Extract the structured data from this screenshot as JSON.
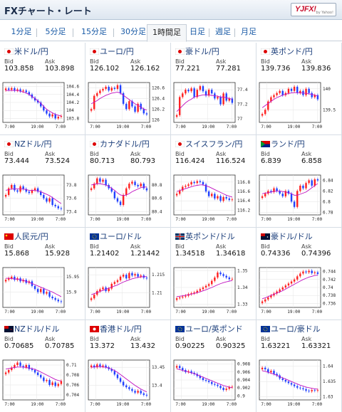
{
  "header": {
    "title": "FXチャート・レート",
    "logo_text": "YJFX!",
    "logo_sub": "by Yahoo!"
  },
  "tabs": [
    "1分足",
    "5分足",
    "15分足",
    "30分足",
    "1時間足",
    "日足",
    "週足",
    "月足"
  ],
  "active_tab": "1時間足",
  "labels": {
    "bid": "Bid",
    "ask": "Ask"
  },
  "colors": {
    "up": "#ff2020",
    "down": "#2040ff",
    "ma": "#c010c0",
    "link": "#1a3d7a"
  },
  "pairs": [
    {
      "name": "米ドル/円",
      "flag": "jp",
      "bid": "103.858",
      "ask": "103.898",
      "chart_data": {
        "type": "candlestick",
        "yticks": [
          "104.6",
          "104.4",
          "104.2",
          "104",
          "103.8"
        ],
        "ylim": [
          103.7,
          104.7
        ],
        "xticks": [
          "7:00",
          "19:00",
          "7:00"
        ],
        "series": [
          104.55,
          104.52,
          104.56,
          104.5,
          104.53,
          104.48,
          104.5,
          104.46,
          104.4,
          104.32,
          104.25,
          104.2,
          104.1,
          104.0,
          103.92,
          103.85,
          103.9,
          103.8,
          103.84,
          103.86
        ],
        "ma": [
          104.5,
          104.5,
          104.5,
          104.5,
          104.5,
          104.48,
          104.46,
          104.44,
          104.4,
          104.35,
          104.3,
          104.24,
          104.18,
          104.1,
          104.03,
          103.98,
          103.94,
          103.9,
          103.88,
          103.86
        ]
      }
    },
    {
      "name": "ユーロ/円",
      "flag": "jp",
      "bid": "126.102",
      "ask": "126.162",
      "chart_data": {
        "type": "candlestick",
        "yticks": [
          "126.6",
          "126.4",
          "126.2",
          "126"
        ],
        "ylim": [
          125.95,
          126.7
        ],
        "xticks": [
          "7:00",
          "19:00",
          "7:00"
        ],
        "series": [
          126.2,
          126.45,
          126.5,
          126.55,
          126.58,
          126.62,
          126.55,
          126.6,
          126.58,
          126.65,
          126.5,
          126.3,
          126.2,
          126.35,
          126.25,
          126.15,
          126.3,
          126.2,
          126.12,
          126.1
        ],
        "ma": [
          126.3,
          126.33,
          126.36,
          126.4,
          126.43,
          126.46,
          126.48,
          126.5,
          126.51,
          126.52,
          126.5,
          126.46,
          126.42,
          126.38,
          126.34,
          126.3,
          126.27,
          126.24,
          126.2,
          126.18
        ]
      }
    },
    {
      "name": "豪ドル/円",
      "flag": "jp",
      "bid": "77.221",
      "ask": "77.281",
      "chart_data": {
        "type": "candlestick",
        "yticks": [
          "77.4",
          "77.2",
          "77"
        ],
        "ylim": [
          76.95,
          77.5
        ],
        "xticks": [
          "7:00",
          "19:00",
          "7:00"
        ],
        "series": [
          77.05,
          77.3,
          77.35,
          77.4,
          77.38,
          77.42,
          77.3,
          77.4,
          77.45,
          77.38,
          77.32,
          77.4,
          77.35,
          77.28,
          77.3,
          77.2,
          77.35,
          77.25,
          77.28,
          77.22
        ],
        "ma": [
          77.1,
          77.14,
          77.18,
          77.22,
          77.25,
          77.27,
          77.3,
          77.31,
          77.32,
          77.33,
          77.33,
          77.33,
          77.32,
          77.32,
          77.31,
          77.3,
          77.3,
          77.29,
          77.28,
          77.27
        ]
      }
    },
    {
      "name": "英ポンド/円",
      "flag": "jp",
      "bid": "139.736",
      "ask": "139.836",
      "chart_data": {
        "type": "candlestick",
        "yticks": [
          "140",
          "139.5"
        ],
        "ylim": [
          139.2,
          140.15
        ],
        "xticks": [
          "7:00",
          "19:00",
          "7:00"
        ],
        "series": [
          139.4,
          139.5,
          139.7,
          139.8,
          139.85,
          139.9,
          139.95,
          139.85,
          139.9,
          140.0,
          139.95,
          140.05,
          139.9,
          139.95,
          139.85,
          140.0,
          139.9,
          139.8,
          139.85,
          139.75
        ],
        "ma": [
          139.55,
          139.6,
          139.65,
          139.7,
          139.75,
          139.79,
          139.82,
          139.85,
          139.87,
          139.89,
          139.9,
          139.91,
          139.91,
          139.9,
          139.9,
          139.89,
          139.88,
          139.87,
          139.85,
          139.83
        ]
      }
    },
    {
      "name": "NZドル/円",
      "flag": "jp",
      "bid": "73.444",
      "ask": "73.524",
      "chart_data": {
        "type": "candlestick",
        "yticks": [
          "73.8",
          "73.6",
          "73.4"
        ],
        "ylim": [
          73.35,
          73.95
        ],
        "xticks": [
          "7:00",
          "19:00",
          "7:00"
        ],
        "series": [
          73.65,
          73.75,
          73.8,
          73.72,
          73.7,
          73.78,
          73.74,
          73.7,
          73.68,
          73.72,
          73.75,
          73.7,
          73.65,
          73.6,
          73.55,
          73.6,
          73.5,
          73.48,
          73.45,
          73.44
        ],
        "ma": [
          73.72,
          73.73,
          73.74,
          73.74,
          73.74,
          73.74,
          73.74,
          73.73,
          73.72,
          73.72,
          73.72,
          73.71,
          73.7,
          73.68,
          73.66,
          73.64,
          73.61,
          73.58,
          73.55,
          73.52
        ]
      }
    },
    {
      "name": "カナダドル/円",
      "flag": "jp",
      "bid": "80.713",
      "ask": "80.793",
      "chart_data": {
        "type": "candlestick",
        "yticks": [
          "80.8",
          "80.6",
          "80.4"
        ],
        "ylim": [
          80.35,
          80.95
        ],
        "xticks": [
          "7:00",
          "19:00",
          "7:00"
        ],
        "series": [
          80.75,
          80.82,
          80.9,
          80.85,
          80.88,
          80.8,
          80.75,
          80.7,
          80.6,
          80.55,
          80.5,
          80.65,
          80.75,
          80.82,
          80.85,
          80.8,
          80.78,
          80.82,
          80.75,
          80.72
        ],
        "ma": [
          80.8,
          80.81,
          80.82,
          80.82,
          80.81,
          80.8,
          80.78,
          80.75,
          80.72,
          80.68,
          80.65,
          80.64,
          80.65,
          80.67,
          80.7,
          80.72,
          80.74,
          80.76,
          80.77,
          80.77
        ]
      }
    },
    {
      "name": "スイスフラン/円",
      "flag": "jp",
      "bid": "116.424",
      "ask": "116.524",
      "chart_data": {
        "type": "candlestick",
        "yticks": [
          "116.8",
          "116.6",
          "116.4",
          "116.2"
        ],
        "ylim": [
          116.1,
          116.95
        ],
        "xticks": [
          "7:00",
          "19:00",
          "7:00"
        ],
        "series": [
          116.55,
          116.62,
          116.7,
          116.72,
          116.75,
          116.8,
          116.78,
          116.82,
          116.8,
          116.75,
          116.6,
          116.5,
          116.55,
          116.45,
          116.5,
          116.4,
          116.48,
          116.45,
          116.42,
          116.43
        ],
        "ma": [
          116.6,
          116.62,
          116.64,
          116.66,
          116.68,
          116.7,
          116.72,
          116.73,
          116.74,
          116.74,
          116.72,
          116.7,
          116.67,
          116.64,
          116.61,
          116.58,
          116.55,
          116.52,
          116.5,
          116.48
        ]
      }
    },
    {
      "name": "ランド/円",
      "flag": "za",
      "bid": "6.839",
      "ask": "6.858",
      "chart_data": {
        "type": "candlestick",
        "yticks": [
          "6.84",
          "6.82",
          "6.8",
          "6.78"
        ],
        "ylim": [
          6.775,
          6.85
        ],
        "xticks": [
          "7:00",
          "19:00",
          "7:00"
        ],
        "series": [
          6.81,
          6.815,
          6.82,
          6.818,
          6.825,
          6.82,
          6.815,
          6.81,
          6.82,
          6.815,
          6.8,
          6.79,
          6.82,
          6.83,
          6.825,
          6.835,
          6.84,
          6.83,
          6.842,
          6.84
        ],
        "ma": [
          6.815,
          6.816,
          6.817,
          6.818,
          6.819,
          6.82,
          6.82,
          6.819,
          6.818,
          6.817,
          6.815,
          6.812,
          6.812,
          6.814,
          6.816,
          6.818,
          6.822,
          6.826,
          6.83,
          6.834
        ]
      }
    },
    {
      "name": "人民元/円",
      "flag": "cn",
      "bid": "15.868",
      "ask": "15.928",
      "chart_data": {
        "type": "candlestick",
        "yticks": [
          "15.95",
          "15.9"
        ],
        "ylim": [
          15.85,
          15.98
        ],
        "xticks": [
          "7:00",
          "19:00",
          "7:00"
        ],
        "series": [
          15.94,
          15.945,
          15.95,
          15.94,
          15.945,
          15.935,
          15.94,
          15.93,
          15.935,
          15.92,
          15.91,
          15.9,
          15.91,
          15.895,
          15.9,
          15.885,
          15.88,
          15.875,
          15.87,
          15.868
        ],
        "ma": [
          15.945,
          15.945,
          15.944,
          15.943,
          15.942,
          15.94,
          15.938,
          15.935,
          15.932,
          15.928,
          15.924,
          15.92,
          15.916,
          15.912,
          15.908,
          15.904,
          15.9,
          15.895,
          15.89,
          15.885
        ]
      }
    },
    {
      "name": "ユーロ/ドル",
      "flag": "eu",
      "bid": "1.21402",
      "ask": "1.21442",
      "chart_data": {
        "type": "candlestick",
        "yticks": [
          "1.215",
          "1.21"
        ],
        "ylim": [
          1.206,
          1.217
        ],
        "xticks": [
          "7:00",
          "19:00",
          "7:00"
        ],
        "series": [
          1.2085,
          1.2095,
          1.2105,
          1.211,
          1.2115,
          1.2105,
          1.2112,
          1.2125,
          1.213,
          1.2135,
          1.2145,
          1.215,
          1.214,
          1.2155,
          1.2148,
          1.2152,
          1.2145,
          1.2148,
          1.2142,
          1.214
        ],
        "ma": [
          1.2095,
          1.2098,
          1.2101,
          1.2104,
          1.2107,
          1.211,
          1.2113,
          1.2116,
          1.2119,
          1.2122,
          1.2126,
          1.213,
          1.2133,
          1.2136,
          1.2139,
          1.2141,
          1.2143,
          1.2144,
          1.2145,
          1.2145
        ]
      }
    },
    {
      "name": "英ポンド/ドル",
      "flag": "gb",
      "bid": "1.34518",
      "ask": "1.34618",
      "chart_data": {
        "type": "candlestick",
        "yticks": [
          "1.35",
          "1.34",
          "1.33"
        ],
        "ylim": [
          1.328,
          1.352
        ],
        "xticks": [
          "7:00",
          "19:00",
          "7:00"
        ],
        "series": [
          1.3335,
          1.334,
          1.3345,
          1.335,
          1.336,
          1.3365,
          1.337,
          1.338,
          1.339,
          1.34,
          1.341,
          1.342,
          1.344,
          1.346,
          1.349,
          1.348,
          1.347,
          1.346,
          1.345,
          1.3452
        ],
        "ma": [
          1.3345,
          1.3347,
          1.335,
          1.3353,
          1.3356,
          1.336,
          1.3364,
          1.3369,
          1.3374,
          1.338,
          1.3386,
          1.3393,
          1.34,
          1.3408,
          1.3416,
          1.3423,
          1.3429,
          1.3434,
          1.3438,
          1.3442
        ]
      }
    },
    {
      "name": "豪ドル/ドル",
      "flag": "au",
      "bid": "0.74336",
      "ask": "0.74396",
      "chart_data": {
        "type": "candlestick",
        "yticks": [
          "0.744",
          "0.742",
          "0.74",
          "0.738",
          "0.736"
        ],
        "ylim": [
          0.735,
          0.745
        ],
        "xticks": [
          "7:00",
          "19:00",
          "7:00"
        ],
        "series": [
          0.7365,
          0.737,
          0.7375,
          0.738,
          0.7385,
          0.739,
          0.7395,
          0.74,
          0.7405,
          0.741,
          0.7415,
          0.742,
          0.7428,
          0.7435,
          0.744,
          0.7438,
          0.7442,
          0.7436,
          0.7438,
          0.7434
        ],
        "ma": [
          0.7372,
          0.7374,
          0.7377,
          0.738,
          0.7383,
          0.7386,
          0.7389,
          0.7392,
          0.7396,
          0.74,
          0.7404,
          0.7408,
          0.7412,
          0.7416,
          0.742,
          0.7423,
          0.7426,
          0.7428,
          0.743,
          0.7431
        ]
      }
    },
    {
      "name": "NZドル/ドル",
      "flag": "nz",
      "bid": "0.70685",
      "ask": "0.70785",
      "chart_data": {
        "type": "candlestick",
        "yticks": [
          "0.71",
          "0.708",
          "0.706",
          "0.704"
        ],
        "ylim": [
          0.703,
          0.711
        ],
        "xticks": [
          "7:00",
          "19:00",
          "7:00"
        ],
        "series": [
          0.7085,
          0.709,
          0.7095,
          0.71,
          0.7105,
          0.7098,
          0.7095,
          0.71,
          0.7092,
          0.709,
          0.7085,
          0.708,
          0.7075,
          0.7068,
          0.707,
          0.706,
          0.7065,
          0.7058,
          0.7062,
          0.7068
        ],
        "ma": [
          0.7092,
          0.7093,
          0.7094,
          0.7095,
          0.7096,
          0.7096,
          0.7096,
          0.7095,
          0.7094,
          0.7093,
          0.7091,
          0.7089,
          0.7086,
          0.7083,
          0.708,
          0.7077,
          0.7074,
          0.7071,
          0.7069,
          0.7068
        ]
      }
    },
    {
      "name": "香港ドル/円",
      "flag": "hk",
      "bid": "13.372",
      "ask": "13.432",
      "chart_data": {
        "type": "candlestick",
        "yticks": [
          "13.45",
          "13.4"
        ],
        "ylim": [
          13.36,
          13.47
        ],
        "xticks": [
          "7:00",
          "19:00",
          "7:00"
        ],
        "series": [
          13.455,
          13.45,
          13.458,
          13.452,
          13.455,
          13.45,
          13.445,
          13.44,
          13.43,
          13.42,
          13.41,
          13.4,
          13.395,
          13.39,
          13.385,
          13.38,
          13.385,
          13.378,
          13.374,
          13.372
        ],
        "ma": [
          13.45,
          13.451,
          13.452,
          13.452,
          13.451,
          13.45,
          13.448,
          13.445,
          13.441,
          13.436,
          13.43,
          13.424,
          13.418,
          13.412,
          13.406,
          13.4,
          13.395,
          13.39,
          13.386,
          13.382
        ]
      }
    },
    {
      "name": "ユーロ/英ポンド",
      "flag": "eu",
      "bid": "0.90225",
      "ask": "0.90325",
      "chart_data": {
        "type": "candlestick",
        "yticks": [
          "0.908",
          "0.906",
          "0.904",
          "0.902",
          "0.9"
        ],
        "ylim": [
          0.899,
          0.909
        ],
        "xticks": [
          "7:00",
          "19:00",
          "7:00"
        ],
        "series": [
          0.9075,
          0.907,
          0.9065,
          0.906,
          0.9062,
          0.9058,
          0.9055,
          0.905,
          0.9045,
          0.904,
          0.9038,
          0.9035,
          0.903,
          0.9028,
          0.9025,
          0.902,
          0.9015,
          0.9018,
          0.9022,
          0.9023
        ],
        "ma": [
          0.9068,
          0.9066,
          0.9064,
          0.9062,
          0.906,
          0.9058,
          0.9056,
          0.9053,
          0.905,
          0.9047,
          0.9044,
          0.9041,
          0.9038,
          0.9035,
          0.9032,
          0.9029,
          0.9026,
          0.9024,
          0.9022,
          0.9021
        ]
      }
    },
    {
      "name": "ユーロ/豪ドル",
      "flag": "eu",
      "bid": "1.63221",
      "ask": "1.63321",
      "chart_data": {
        "type": "candlestick",
        "yticks": [
          "1.64",
          "1.635",
          "1.63"
        ],
        "ylim": [
          1.629,
          1.642
        ],
        "xticks": [
          "7:00",
          "19:00",
          "7:00"
        ],
        "series": [
          1.6395,
          1.639,
          1.638,
          1.6385,
          1.6375,
          1.637,
          1.636,
          1.6355,
          1.635,
          1.6345,
          1.634,
          1.6335,
          1.633,
          1.6328,
          1.6325,
          1.632,
          1.6318,
          1.6322,
          1.632,
          1.6322
        ],
        "ma": [
          1.6385,
          1.6383,
          1.638,
          1.6377,
          1.6374,
          1.637,
          1.6366,
          1.6362,
          1.6358,
          1.6354,
          1.635,
          1.6346,
          1.6342,
          1.6338,
          1.6335,
          1.6332,
          1.633,
          1.6328,
          1.6326,
          1.6325
        ]
      }
    }
  ]
}
